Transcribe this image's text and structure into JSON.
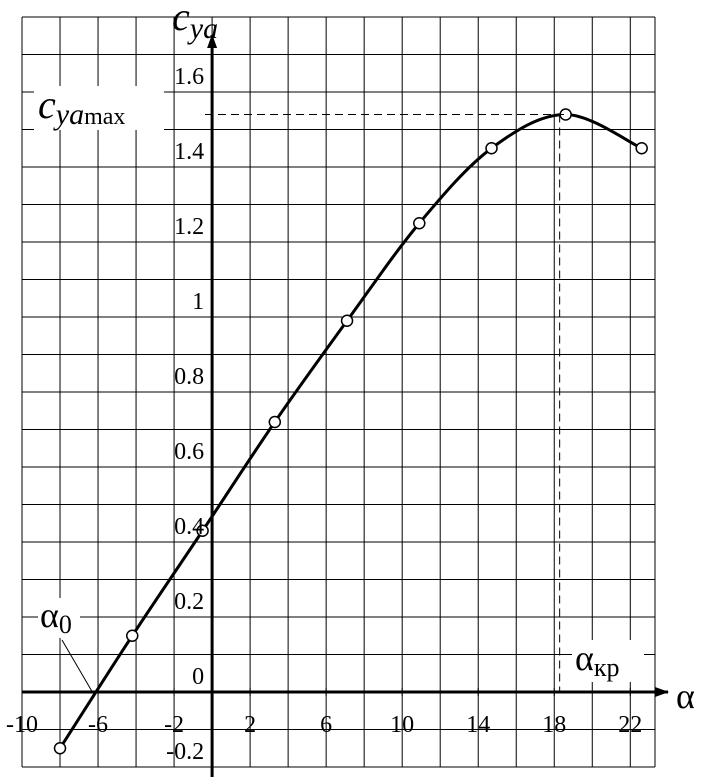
{
  "chart_data": {
    "type": "line",
    "y_label": {
      "symbol": "c",
      "sub": "ya"
    },
    "x_label": "α",
    "annotations": {
      "max": {
        "symbol": "c",
        "sub": "ya",
        "suffix": "max"
      },
      "critical": {
        "symbol": "α",
        "sub": "кр"
      },
      "zero": {
        "symbol": "α",
        "sub": "0",
        "x": -6.3
      }
    },
    "series": [
      {
        "color": "#000000",
        "x": [
          -8,
          -4.2,
          -0.5,
          3.3,
          7.1,
          10.9,
          14.7,
          18.6,
          22.6
        ],
        "values": [
          -0.15,
          0.15,
          0.43,
          0.72,
          0.99,
          1.25,
          1.45,
          1.54,
          1.45
        ]
      }
    ],
    "xlim": [
      -10,
      23.3
    ],
    "ylim": [
      -0.2,
      1.8
    ],
    "xticks": [
      -10,
      -6,
      -2,
      2,
      6,
      10,
      14,
      18,
      22
    ],
    "yticks": [
      -0.2,
      0,
      0.2,
      0.4,
      0.6,
      0.8,
      1,
      1.2,
      1.4,
      1.6
    ],
    "grid": true,
    "grid_step_x": 2,
    "grid_step_y": 0.1
  }
}
